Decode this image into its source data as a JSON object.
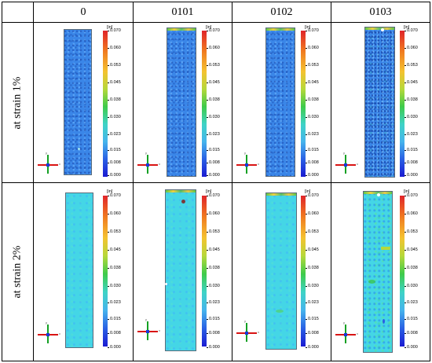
{
  "columns": [
    "0",
    "0101",
    "0102",
    "0103"
  ],
  "rows": [
    "at strain 1%",
    "at strain 2%"
  ],
  "legend": {
    "unit": "[in]",
    "ticks": [
      "0.070",
      "0.060",
      "0.053",
      "0.045",
      "0.038",
      "0.030",
      "0.023",
      "0.015",
      "0.008",
      "0.000"
    ],
    "colors": [
      "#e0242a",
      "#f07a20",
      "#f4c230",
      "#b6d83a",
      "#3ecb4a",
      "#3ed3c6",
      "#46b4ec",
      "#2a60e4",
      "#1a1ad2"
    ]
  },
  "specimen_colors": {
    "strain_1": "#3a86e8",
    "strain_2": "#44d6e6"
  },
  "axis_labels": {
    "x": "x",
    "y": "y"
  }
}
